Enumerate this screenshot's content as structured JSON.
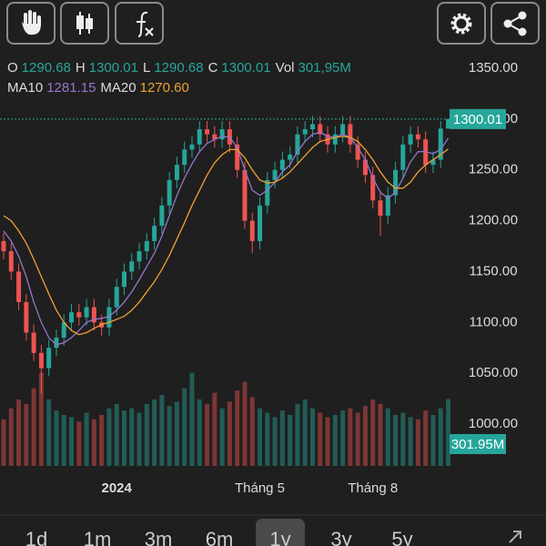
{
  "chart_data": {
    "type": "candlestick",
    "legend_rows": [
      [
        {
          "label": "O",
          "value": 1290.68
        },
        {
          "label": "H",
          "value": 1300.01
        },
        {
          "label": "L",
          "value": 1290.68
        },
        {
          "label": "C",
          "value": 1300.01
        },
        {
          "label": "Vol",
          "value": 301.95,
          "value_label": "301,95M"
        }
      ],
      [
        {
          "label": "MA10",
          "value": 1281.15,
          "color": "#9575cd"
        },
        {
          "label": "MA20",
          "value": 1270.6,
          "value_label": "1270.60",
          "color": "#f0a030"
        }
      ]
    ],
    "categories": [
      null,
      null,
      null,
      null,
      null,
      null,
      null,
      null,
      null,
      null,
      null,
      null,
      null,
      null,
      null,
      "2024",
      null,
      null,
      null,
      null,
      null,
      null,
      null,
      null,
      null,
      null,
      null,
      null,
      null,
      null,
      null,
      null,
      null,
      null,
      "Tháng 5",
      null,
      null,
      null,
      null,
      null,
      null,
      null,
      null,
      null,
      null,
      null,
      null,
      null,
      null,
      "Tháng 8",
      null,
      null,
      null,
      null,
      null,
      null,
      null,
      null,
      null,
      null
    ],
    "open": [
      1180,
      1170,
      1150,
      1120,
      1090,
      1070,
      1055,
      1075,
      1085,
      1100,
      1110,
      1105,
      1115,
      1100,
      1095,
      1115,
      1135,
      1150,
      1160,
      1170,
      1180,
      1195,
      1215,
      1240,
      1255,
      1270,
      1275,
      1290,
      1285,
      1280,
      1290,
      1275,
      1250,
      1200,
      1180,
      1215,
      1240,
      1250,
      1260,
      1265,
      1285,
      1290,
      1295,
      1285,
      1275,
      1285,
      1295,
      1275,
      1260,
      1245,
      1220,
      1205,
      1225,
      1250,
      1275,
      1285,
      1280,
      1255,
      1260,
      1290.68
    ],
    "high": [
      1188,
      1178,
      1158,
      1128,
      1098,
      1078,
      1083,
      1093,
      1108,
      1118,
      1118,
      1123,
      1123,
      1108,
      1123,
      1143,
      1158,
      1168,
      1178,
      1188,
      1203,
      1223,
      1248,
      1263,
      1278,
      1283,
      1298,
      1298,
      1293,
      1298,
      1298,
      1283,
      1258,
      1208,
      1223,
      1248,
      1258,
      1268,
      1273,
      1293,
      1298,
      1303,
      1303,
      1293,
      1293,
      1303,
      1303,
      1283,
      1268,
      1253,
      1228,
      1233,
      1258,
      1283,
      1293,
      1293,
      1288,
      1268,
      1298,
      1300.01
    ],
    "low": [
      1162,
      1142,
      1112,
      1082,
      1062,
      1030,
      1047,
      1067,
      1077,
      1092,
      1097,
      1097,
      1092,
      1087,
      1087,
      1107,
      1127,
      1142,
      1152,
      1162,
      1172,
      1187,
      1207,
      1232,
      1247,
      1262,
      1267,
      1277,
      1272,
      1272,
      1267,
      1242,
      1192,
      1168,
      1172,
      1207,
      1232,
      1242,
      1252,
      1257,
      1277,
      1282,
      1277,
      1267,
      1267,
      1277,
      1267,
      1252,
      1237,
      1212,
      1185,
      1197,
      1217,
      1242,
      1267,
      1272,
      1247,
      1247,
      1252,
      1290.68
    ],
    "close": [
      1170,
      1150,
      1120,
      1090,
      1070,
      1055,
      1075,
      1085,
      1100,
      1110,
      1105,
      1115,
      1100,
      1095,
      1115,
      1135,
      1150,
      1160,
      1170,
      1180,
      1195,
      1215,
      1240,
      1255,
      1270,
      1275,
      1290,
      1285,
      1280,
      1290,
      1275,
      1250,
      1200,
      1180,
      1215,
      1240,
      1250,
      1260,
      1265,
      1285,
      1290,
      1295,
      1285,
      1275,
      1285,
      1295,
      1275,
      1260,
      1245,
      1220,
      1205,
      1225,
      1250,
      1275,
      1285,
      1280,
      1255,
      1260,
      1290.68,
      1300.01
    ],
    "volume": [
      210,
      260,
      300,
      280,
      350,
      420,
      300,
      250,
      230,
      220,
      200,
      240,
      210,
      230,
      260,
      280,
      250,
      260,
      240,
      280,
      300,
      320,
      270,
      290,
      350,
      420,
      300,
      280,
      330,
      260,
      290,
      340,
      380,
      310,
      260,
      240,
      220,
      250,
      230,
      280,
      300,
      260,
      240,
      220,
      230,
      250,
      260,
      240,
      270,
      300,
      280,
      260,
      230,
      240,
      220,
      210,
      250,
      230,
      260,
      301.95
    ],
    "series": [
      {
        "name": "MA10",
        "color": "#9575cd",
        "values": [
          1190,
          1180,
          1165,
          1145,
          1120,
          1100,
          1085,
          1078,
          1080,
          1085,
          1092,
          1100,
          1103,
          1104,
          1106,
          1112,
          1120,
          1130,
          1142,
          1155,
          1168,
          1185,
          1205,
          1225,
          1242,
          1256,
          1268,
          1276,
          1280,
          1283,
          1282,
          1272,
          1250,
          1230,
          1225,
          1230,
          1238,
          1248,
          1255,
          1268,
          1278,
          1285,
          1287,
          1283,
          1282,
          1285,
          1282,
          1272,
          1260,
          1242,
          1228,
          1222,
          1228,
          1242,
          1258,
          1268,
          1268,
          1266,
          1270,
          1281.15
        ]
      },
      {
        "name": "MA20",
        "color": "#f0a030",
        "values": [
          1205,
          1200,
          1190,
          1178,
          1162,
          1145,
          1128,
          1112,
          1100,
          1092,
          1088,
          1090,
          1094,
          1098,
          1100,
          1103,
          1106,
          1112,
          1120,
          1130,
          1140,
          1152,
          1166,
          1182,
          1198,
          1215,
          1230,
          1245,
          1257,
          1265,
          1270,
          1270,
          1262,
          1250,
          1240,
          1237,
          1238,
          1242,
          1248,
          1256,
          1264,
          1272,
          1278,
          1280,
          1282,
          1283,
          1282,
          1278,
          1270,
          1260,
          1248,
          1238,
          1232,
          1232,
          1238,
          1248,
          1255,
          1260,
          1265,
          1270.6
        ]
      }
    ],
    "up_color": "#26a69a",
    "down_color": "#ef5350",
    "ylim": [
      1000,
      1350
    ],
    "yticks": [
      {
        "value": 1350,
        "label": "1350.00"
      },
      {
        "value": 1300,
        "label": "1300.00"
      },
      {
        "value": 1250,
        "label": "1250.00"
      },
      {
        "value": 1200,
        "label": "1200.00"
      },
      {
        "value": 1150,
        "label": "1150.00"
      },
      {
        "value": 1100,
        "label": "1100.00"
      },
      {
        "value": 1050,
        "label": "1050.00"
      },
      {
        "value": 1000,
        "label": "1000.00"
      }
    ],
    "volume_ylim": [
      0,
      550
    ],
    "last_price": 1300.01,
    "last_volume": {
      "value": 301.95,
      "label": "301.95M"
    },
    "ranges": [
      "1d",
      "1m",
      "3m",
      "6m",
      "1y",
      "3y",
      "5y"
    ],
    "selected_range": "1y"
  }
}
